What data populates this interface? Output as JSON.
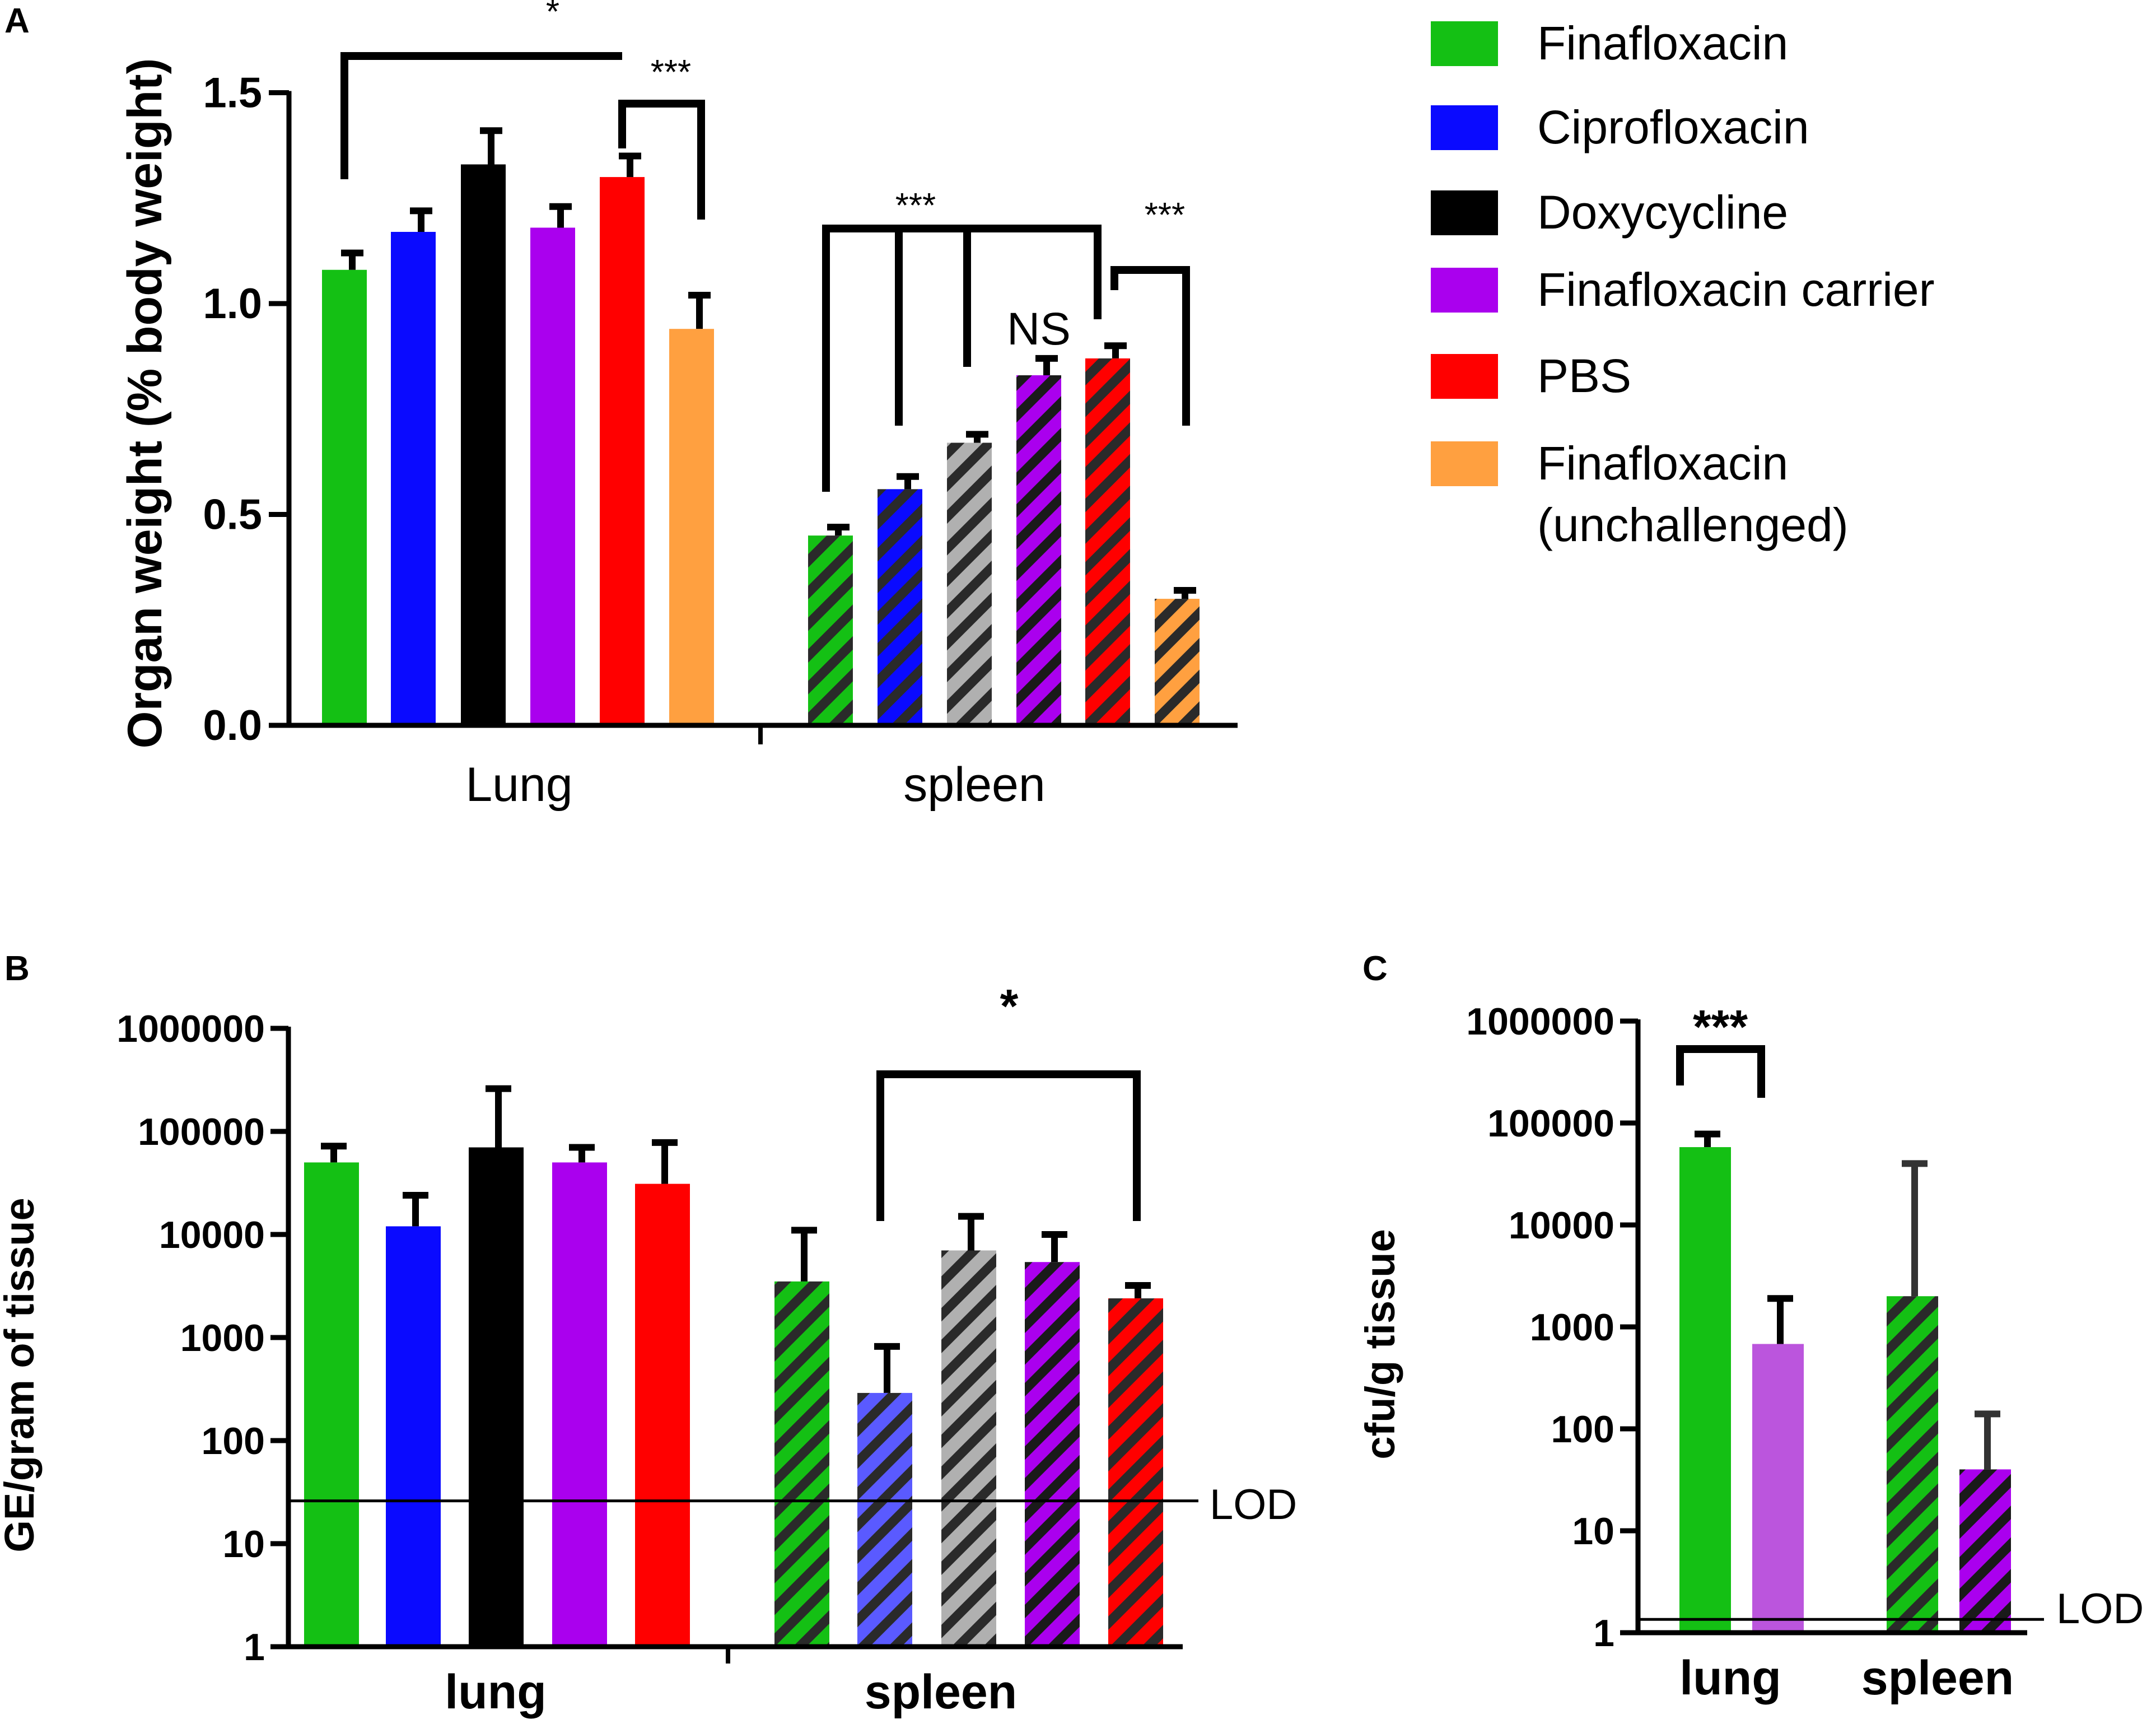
{
  "colors": {
    "finafloxacin": "#14c014",
    "ciprofloxacin": "#0a0aff",
    "doxycycline": "#000000",
    "carrier": "#aa00ee",
    "pbs": "#ff0000",
    "unchallenged": "#ffa040",
    "cipro_light": "#5a5aff",
    "doxy_light": "#b0b0b0",
    "carrier_light": "#bb55dd"
  },
  "legend": {
    "items": [
      {
        "label": "Finafloxacin",
        "color": "#14c014"
      },
      {
        "label": "Ciprofloxacin",
        "color": "#0a0aff"
      },
      {
        "label": "Doxycycline",
        "color": "#000000"
      },
      {
        "label": "Finafloxacin carrier",
        "color": "#aa00ee"
      },
      {
        "label": "PBS",
        "color": "#ff0000"
      },
      {
        "label": "Finafloxacin\n(unchallenged)",
        "color": "#ffa040"
      }
    ]
  },
  "chart_data": [
    {
      "panel": "A",
      "type": "bar",
      "ylabel": "Organ weight (% body weight)",
      "ylim": [
        0,
        1.5
      ],
      "yticks": [
        "0.0",
        "0.5",
        "1.0",
        "1.5"
      ],
      "categories": [
        "Lung",
        "spleen"
      ],
      "series": [
        {
          "name": "Finafloxacin",
          "values": [
            1.08,
            0.45
          ],
          "errors": [
            0.04,
            0.02
          ]
        },
        {
          "name": "Ciprofloxacin",
          "values": [
            1.17,
            0.56
          ],
          "errors": [
            0.05,
            0.03
          ]
        },
        {
          "name": "Doxycycline",
          "values": [
            1.33,
            0.67
          ],
          "errors": [
            0.08,
            0.02
          ]
        },
        {
          "name": "Finafloxacin carrier",
          "values": [
            1.18,
            0.83
          ],
          "errors": [
            0.05,
            0.04
          ]
        },
        {
          "name": "PBS",
          "values": [
            1.3,
            0.87
          ],
          "errors": [
            0.05,
            0.03
          ]
        },
        {
          "name": "Finafloxacin (unchallenged)",
          "values": [
            0.94,
            0.3
          ],
          "errors": [
            0.08,
            0.02
          ]
        }
      ],
      "annotations": [
        "*",
        "***",
        "***",
        "***",
        "NS"
      ]
    },
    {
      "panel": "B",
      "type": "bar",
      "yscale": "log",
      "ylabel": "GE/gram of tissue",
      "ylim": [
        1,
        1000000
      ],
      "yticks": [
        "1",
        "10",
        "100",
        "1000",
        "10000",
        "100000",
        "1000000"
      ],
      "categories": [
        "lung",
        "spleen"
      ],
      "series": [
        {
          "name": "Finafloxacin",
          "values": [
            50000,
            3500
          ],
          "error_tops": [
            72000,
            11000
          ]
        },
        {
          "name": "Ciprofloxacin",
          "values": [
            12000,
            290
          ],
          "error_tops": [
            24000,
            820
          ]
        },
        {
          "name": "Doxycycline",
          "values": [
            70000,
            7000
          ],
          "error_tops": [
            260000,
            15000
          ]
        },
        {
          "name": "Finafloxacin carrier",
          "values": [
            50000,
            5400
          ],
          "error_tops": [
            70000,
            10000
          ]
        },
        {
          "name": "PBS",
          "values": [
            31000,
            2400
          ],
          "error_tops": [
            78000,
            3200
          ]
        }
      ],
      "lod_value": 26,
      "lod_label": "LOD",
      "annotations": [
        "*"
      ]
    },
    {
      "panel": "C",
      "type": "bar",
      "yscale": "log",
      "ylabel": "cfu/g tissue",
      "ylim": [
        1,
        1000000
      ],
      "yticks": [
        "1",
        "10",
        "100",
        "1000",
        "10000",
        "100000",
        "1000000"
      ],
      "categories": [
        "lung",
        "spleen"
      ],
      "series": [
        {
          "name": "Finafloxacin",
          "values": [
            58000,
            2000
          ],
          "error_tops": [
            78000,
            40000
          ]
        },
        {
          "name": "Finafloxacin carrier",
          "values": [
            680,
            40
          ],
          "error_tops": [
            1900,
            140
          ]
        }
      ],
      "lod_value": 1.35,
      "lod_label": "LOD",
      "annotations": [
        "***"
      ]
    }
  ]
}
